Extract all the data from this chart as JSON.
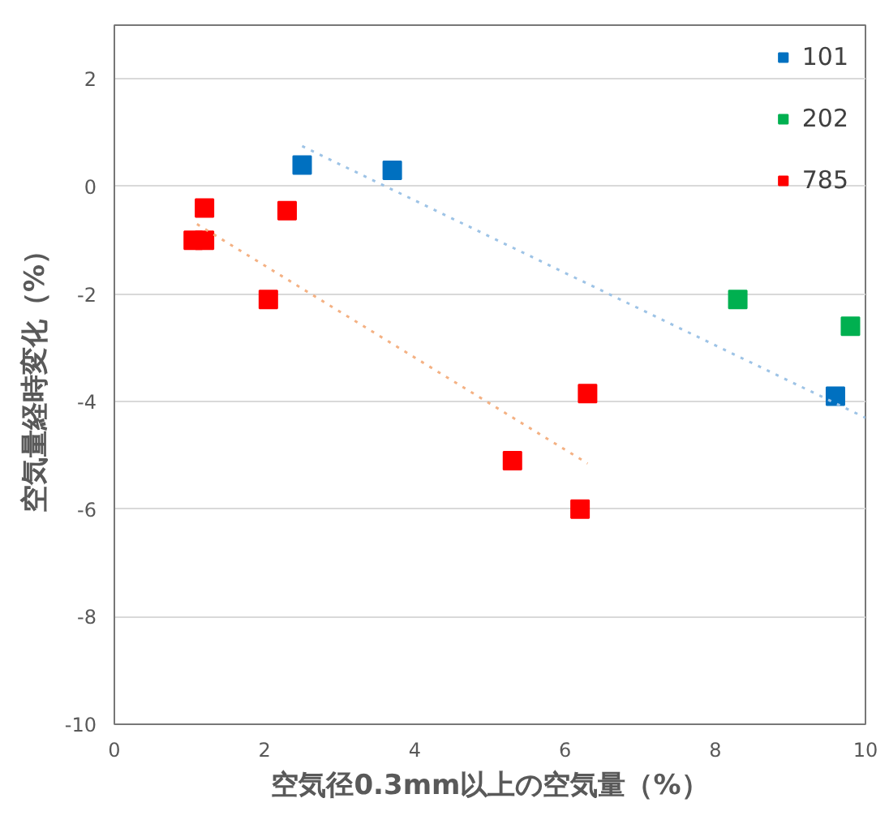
{
  "chart_data": {
    "type": "scatter",
    "xlabel": "空気径0.3mm以上の空気量（%）",
    "ylabel": "空気量経時変化（%）",
    "xlim": [
      0,
      10
    ],
    "ylim": [
      -10,
      3
    ],
    "xticks": [
      0,
      2,
      4,
      6,
      8,
      10
    ],
    "yticks": [
      -10,
      -8,
      -6,
      -4,
      -2,
      0,
      2
    ],
    "grid": "y",
    "legend": "top right",
    "marker": "square",
    "series": [
      {
        "name": "101",
        "color": "#0070c0",
        "x": [
          2.5,
          3.7,
          9.6
        ],
        "values": [
          0.4,
          0.3,
          -3.9
        ]
      },
      {
        "name": "202",
        "color": "#00b050",
        "x": [
          8.3,
          9.8
        ],
        "values": [
          -2.1,
          -2.6
        ]
      },
      {
        "name": "785",
        "color": "#ff0000",
        "x": [
          1.05,
          1.2,
          1.2,
          2.3,
          2.05,
          6.3,
          5.3,
          6.2
        ],
        "values": [
          -1.0,
          -1.0,
          -0.4,
          -0.45,
          -2.1,
          -3.85,
          -5.1,
          -6.0
        ]
      },
      {
        "type": "line",
        "color": "#9dc3e6",
        "line_style": "dotted",
        "marker": "none",
        "x": [
          2.5,
          10
        ],
        "values": [
          0.75,
          -4.3
        ]
      },
      {
        "type": "line",
        "color": "#f4b183",
        "line_style": "dotted",
        "marker": "none",
        "x": [
          1.1,
          6.3
        ],
        "values": [
          -0.7,
          -5.15
        ]
      }
    ]
  }
}
